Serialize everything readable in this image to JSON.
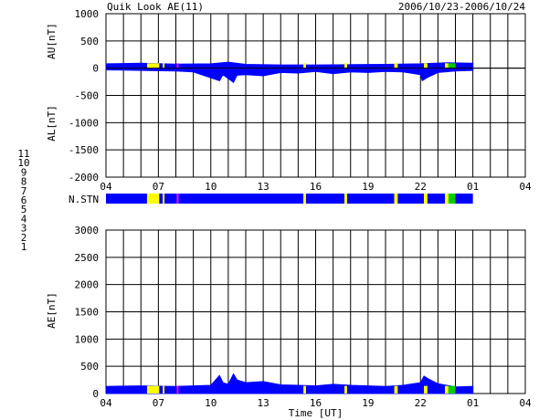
{
  "header": {
    "title": "Quik Look AE(11)",
    "date_range": "2006/10/23-2006/10/24"
  },
  "colors": {
    "data_fill": "#0000ff",
    "grid": "#000000",
    "stations": {
      "1": "#0000aa",
      "2": "#aa00aa",
      "3": "#00aaaa",
      "4": "#aaaaaa",
      "5": "#bbbbbb",
      "6": "#ff0000",
      "7": "#00cc00",
      "8": "#ffff00",
      "9": "#0000ff",
      "10": "#ff00ff",
      "11": "#00ffff"
    }
  },
  "station_legend": [
    "11",
    "10",
    "9",
    "8",
    "7",
    "6",
    "5",
    "4",
    "3",
    "2",
    "1"
  ],
  "chart_data": [
    {
      "type": "area",
      "panel": "AU/AL",
      "ylabel_top": "AU[nT]",
      "ylabel_bottom": "AL[nT]",
      "ylim": [
        -2000,
        1000
      ],
      "yticks": [
        1000,
        500,
        0,
        -500,
        -1000,
        -1500,
        -2000
      ],
      "ytick_labels": [
        "1000",
        "500",
        "0",
        "-500",
        "-1000",
        "-1500",
        "-2000"
      ],
      "xlim_hours": [
        4,
        28
      ],
      "xticks_hours": [
        4,
        7,
        10,
        13,
        16,
        19,
        22,
        25,
        28
      ],
      "xtick_labels": [
        "04",
        "07",
        "10",
        "13",
        "16",
        "19",
        "22",
        "01",
        "04"
      ],
      "grid": true,
      "series": [
        {
          "name": "AU",
          "x_hours": [
            4,
            6,
            8,
            10,
            11,
            12,
            14,
            16,
            18,
            20,
            22,
            23.5,
            25
          ],
          "values": [
            80,
            90,
            75,
            80,
            110,
            70,
            60,
            60,
            65,
            70,
            80,
            100,
            90
          ]
        },
        {
          "name": "AL",
          "x_hours": [
            4,
            6,
            8,
            9,
            10.5,
            10.7,
            11.3,
            11.5,
            12,
            13,
            14,
            15,
            16,
            17,
            18,
            19,
            20,
            21,
            22,
            22.1,
            22.4,
            23,
            24,
            25
          ],
          "values": [
            -30,
            -40,
            -50,
            -70,
            -230,
            -120,
            -260,
            -130,
            -120,
            -140,
            -80,
            -90,
            -60,
            -100,
            -70,
            -80,
            -60,
            -70,
            -120,
            -230,
            -170,
            -80,
            -50,
            -40
          ]
        }
      ]
    },
    {
      "type": "heatmap",
      "panel": "N.STN",
      "label": "N.STN",
      "segments": [
        {
          "from": 4.0,
          "to": 6.35,
          "stations": "9"
        },
        {
          "from": 6.35,
          "to": 7.05,
          "stations": "8"
        },
        {
          "from": 7.05,
          "to": 7.25,
          "stations": "9"
        },
        {
          "from": 7.25,
          "to": 7.35,
          "stations": "8"
        },
        {
          "from": 7.35,
          "to": 8.05,
          "stations": "9"
        },
        {
          "from": 8.05,
          "to": 8.15,
          "stations": "10"
        },
        {
          "from": 8.15,
          "to": 15.3,
          "stations": "9"
        },
        {
          "from": 15.3,
          "to": 15.45,
          "stations": "8"
        },
        {
          "from": 15.45,
          "to": 17.65,
          "stations": "9"
        },
        {
          "from": 17.65,
          "to": 17.8,
          "stations": "8"
        },
        {
          "from": 17.8,
          "to": 20.5,
          "stations": "9"
        },
        {
          "from": 20.5,
          "to": 20.7,
          "stations": "8"
        },
        {
          "from": 20.7,
          "to": 22.2,
          "stations": "9"
        },
        {
          "from": 22.2,
          "to": 22.4,
          "stations": "8"
        },
        {
          "from": 22.4,
          "to": 23.4,
          "stations": "9"
        },
        {
          "from": 23.4,
          "to": 23.6,
          "stations": "8"
        },
        {
          "from": 23.6,
          "to": 24.0,
          "stations": "7"
        },
        {
          "from": 24.0,
          "to": 25.0,
          "stations": "9"
        }
      ]
    },
    {
      "type": "area",
      "panel": "AE",
      "ylabel": "AE[nT]",
      "xlabel": "Time [UT]",
      "ylim": [
        0,
        3000
      ],
      "yticks": [
        3000,
        2500,
        2000,
        1500,
        1000,
        500,
        0
      ],
      "ytick_labels": [
        "3000",
        "2500",
        "2000",
        "1500",
        "1000",
        "500",
        "0"
      ],
      "xlim_hours": [
        4,
        28
      ],
      "xticks_hours": [
        4,
        7,
        10,
        13,
        16,
        19,
        22,
        25,
        28
      ],
      "xtick_labels": [
        "04",
        "07",
        "10",
        "13",
        "16",
        "19",
        "22",
        "01",
        "04"
      ],
      "grid": true,
      "series": [
        {
          "name": "AE",
          "x_hours": [
            4,
            6,
            8,
            10,
            10.5,
            10.7,
            11,
            11.3,
            11.5,
            12,
            13,
            14,
            15,
            16,
            17,
            18,
            19,
            20,
            21,
            22,
            22.2,
            22.5,
            23,
            24,
            25
          ],
          "values": [
            130,
            140,
            130,
            150,
            330,
            200,
            170,
            360,
            250,
            200,
            220,
            160,
            150,
            140,
            170,
            150,
            140,
            130,
            150,
            200,
            320,
            260,
            180,
            120,
            130
          ]
        }
      ]
    }
  ]
}
